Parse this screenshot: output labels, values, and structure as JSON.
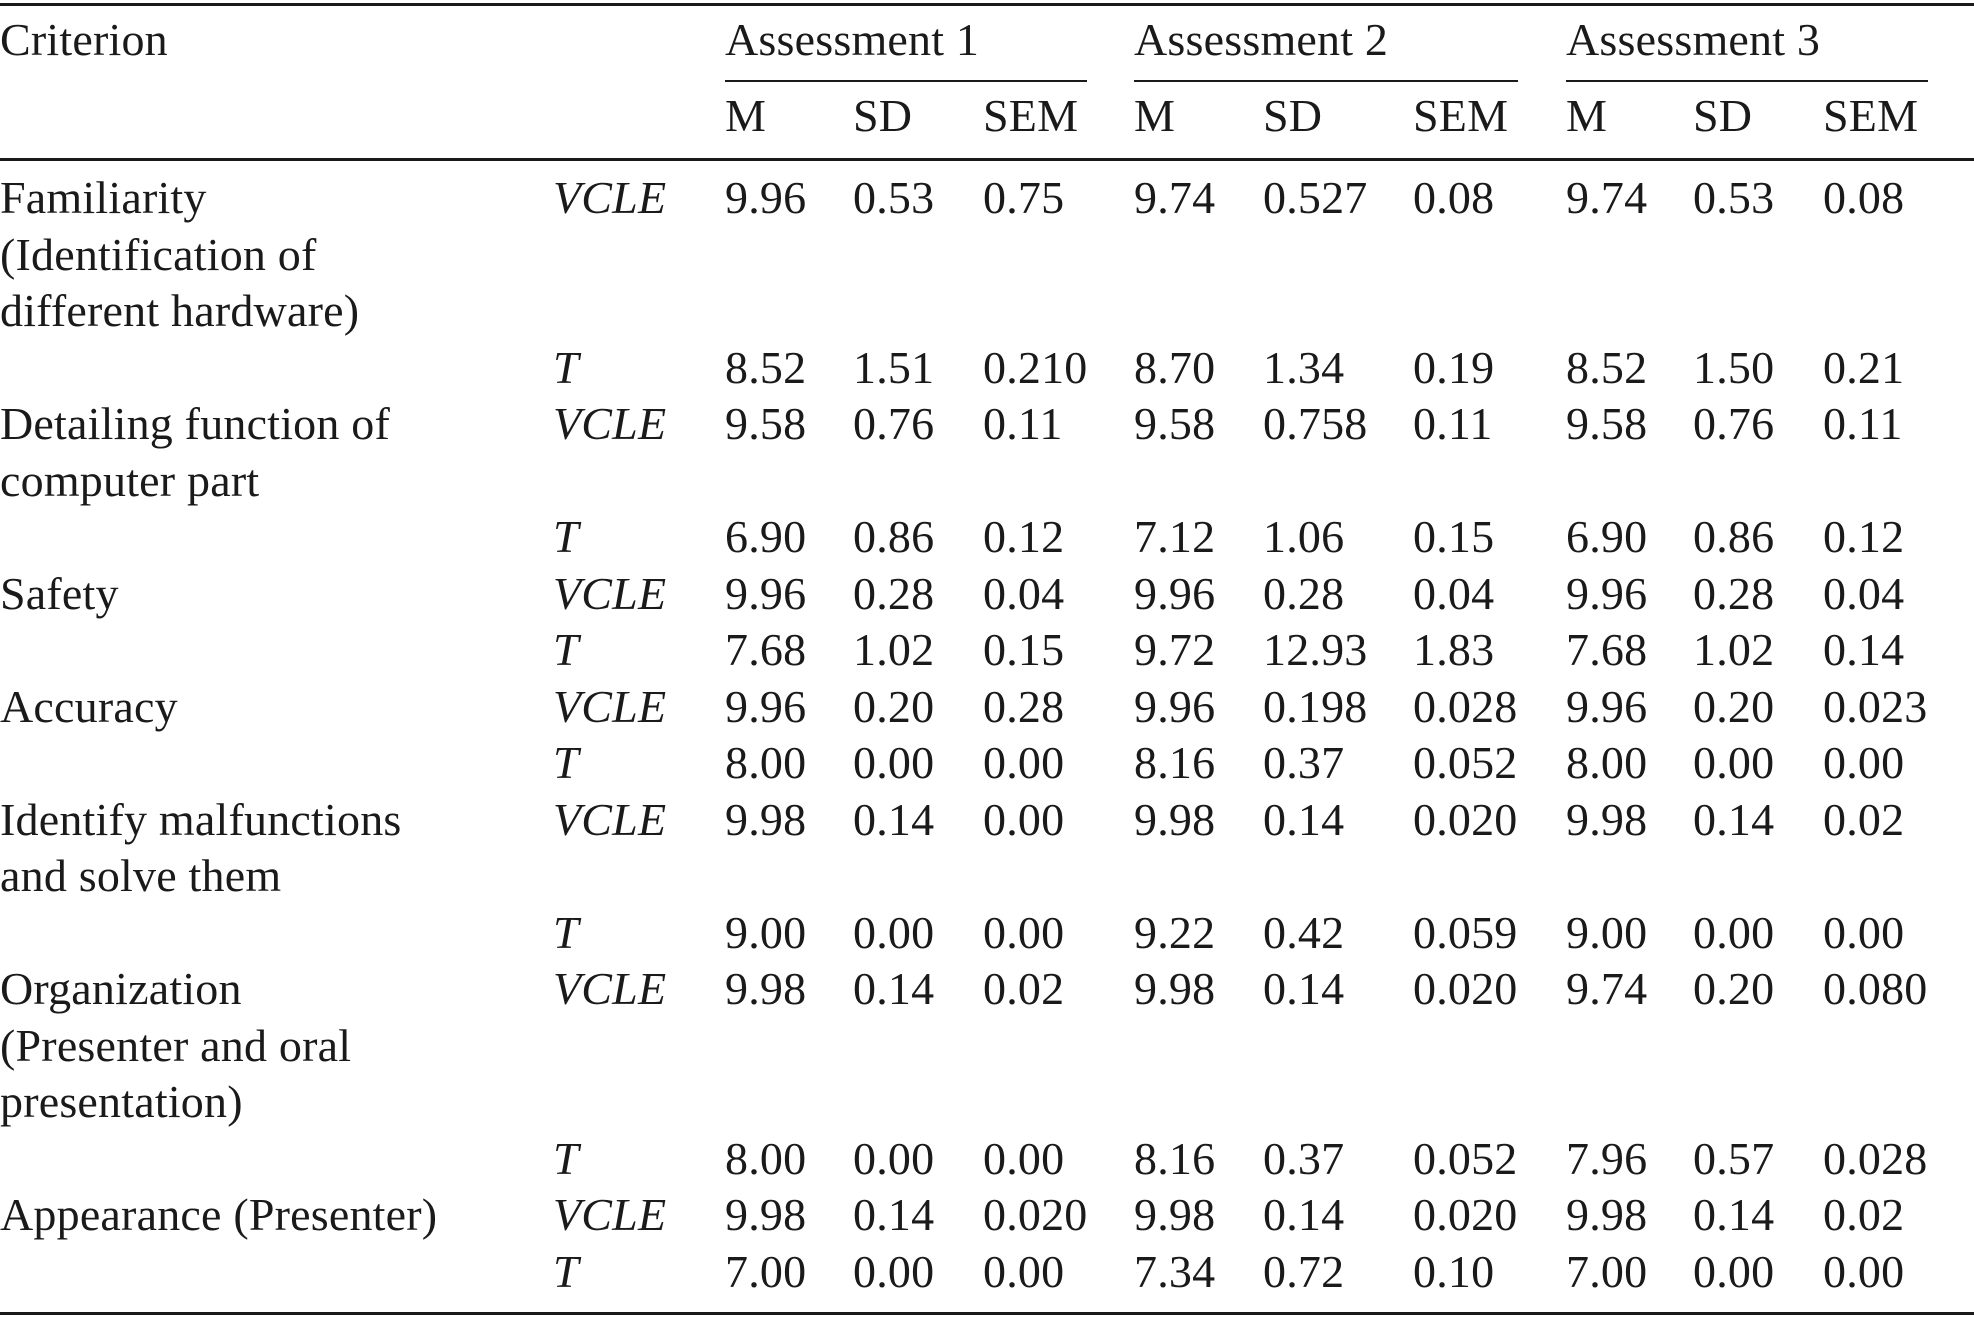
{
  "table": {
    "criterion_header": "Criterion",
    "groups": [
      "Assessment 1",
      "Assessment 2",
      "Assessment 3"
    ],
    "stat_headers": [
      "M",
      "SD",
      "SEM"
    ],
    "rows": [
      {
        "criterion": [
          "Familiarity",
          "(Identification of",
          "different hardware)"
        ],
        "group": "VCLE",
        "values": [
          "9.96",
          "0.53",
          "0.75",
          "9.74",
          "0.527",
          "0.08",
          "9.74",
          "0.53",
          "0.08"
        ]
      },
      {
        "criterion": [],
        "group": "T",
        "values": [
          "8.52",
          "1.51",
          "0.210",
          "8.70",
          "1.34",
          "0.19",
          "8.52",
          "1.50",
          "0.21"
        ]
      },
      {
        "criterion": [
          "Detailing function of",
          "computer part"
        ],
        "group": "VCLE",
        "values": [
          "9.58",
          "0.76",
          "0.11",
          "9.58",
          "0.758",
          "0.11",
          "9.58",
          "0.76",
          "0.11"
        ]
      },
      {
        "criterion": [],
        "group": "T",
        "values": [
          "6.90",
          "0.86",
          "0.12",
          "7.12",
          "1.06",
          "0.15",
          "6.90",
          "0.86",
          "0.12"
        ]
      },
      {
        "criterion": [
          "Safety"
        ],
        "group": "VCLE",
        "values": [
          "9.96",
          "0.28",
          "0.04",
          "9.96",
          "0.28",
          "0.04",
          "9.96",
          "0.28",
          "0.04"
        ]
      },
      {
        "criterion": [],
        "group": "T",
        "values": [
          "7.68",
          "1.02",
          "0.15",
          "9.72",
          "12.93",
          "1.83",
          "7.68",
          "1.02",
          "0.14"
        ]
      },
      {
        "criterion": [
          "Accuracy"
        ],
        "group": "VCLE",
        "values": [
          "9.96",
          "0.20",
          "0.28",
          "9.96",
          "0.198",
          "0.028",
          "9.96",
          "0.20",
          "0.023"
        ]
      },
      {
        "criterion": [],
        "group": "T",
        "values": [
          "8.00",
          "0.00",
          "0.00",
          "8.16",
          "0.37",
          "0.052",
          "8.00",
          "0.00",
          "0.00"
        ]
      },
      {
        "criterion": [
          "Identify malfunctions",
          "and solve them"
        ],
        "group": "VCLE",
        "values": [
          "9.98",
          "0.14",
          "0.00",
          "9.98",
          "0.14",
          "0.020",
          "9.98",
          "0.14",
          "0.02"
        ]
      },
      {
        "criterion": [],
        "group": "T",
        "values": [
          "9.00",
          "0.00",
          "0.00",
          "9.22",
          "0.42",
          "0.059",
          "9.00",
          "0.00",
          "0.00"
        ]
      },
      {
        "criterion": [
          "Organization",
          "(Presenter and oral",
          "presentation)"
        ],
        "group": "VCLE",
        "values": [
          "9.98",
          "0.14",
          "0.02",
          "9.98",
          "0.14",
          "0.020",
          "9.74",
          "0.20",
          "0.080"
        ]
      },
      {
        "criterion": [],
        "group": "T",
        "values": [
          "8.00",
          "0.00",
          "0.00",
          "8.16",
          "0.37",
          "0.052",
          "7.96",
          "0.57",
          "0.028"
        ]
      },
      {
        "criterion": [
          "Appearance (Presenter)"
        ],
        "group": "VCLE",
        "values": [
          "9.98",
          "0.14",
          "0.020",
          "9.98",
          "0.14",
          "0.020",
          "9.98",
          "0.14",
          "0.02"
        ]
      },
      {
        "criterion": [],
        "group": "T",
        "values": [
          "7.00",
          "0.00",
          "0.00",
          "7.34",
          "0.72",
          "0.10",
          "7.00",
          "0.00",
          "0.00"
        ]
      }
    ]
  }
}
